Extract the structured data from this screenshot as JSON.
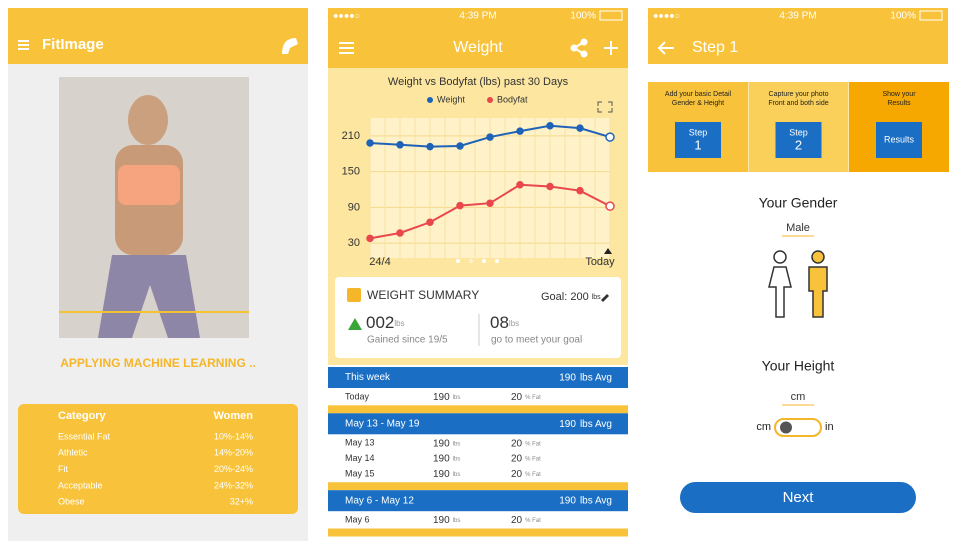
{
  "screens": [
    {
      "header": {
        "title": "FitImage"
      },
      "status": "APPLYING MACHINE LEARNING ..",
      "table": {
        "columns": [
          "Category",
          "Women"
        ],
        "rows": [
          [
            "Essential Fat",
            "10%-14%"
          ],
          [
            "Athletic",
            "14%-20%"
          ],
          [
            "Fit",
            "20%-24%"
          ],
          [
            "Acceptable",
            "24%-32%"
          ],
          [
            "Obese",
            "32+%"
          ]
        ]
      }
    },
    {
      "status_bar": {
        "time": "4:39 PM",
        "battery": "100%"
      },
      "header": {
        "title": "Weight"
      },
      "chart": {
        "type": "line",
        "title": "Weight vs Bodyfat (lbs) past 30 Days",
        "categories": [
          "24/4",
          null,
          null,
          null,
          null,
          null,
          null,
          null,
          "Today"
        ],
        "series": [
          {
            "name": "Weight",
            "color": "#1e63b8",
            "values": [
              198,
              195,
              192,
              193,
              208,
              218,
              227,
              223,
              208
            ]
          },
          {
            "name": "Bodyfat",
            "color": "#e8474c",
            "values": [
              38,
              47,
              65,
              93,
              97,
              128,
              125,
              118,
              92
            ]
          }
        ],
        "ylim": [
          5,
          240
        ],
        "yticks": [
          30,
          90,
          150,
          210
        ]
      },
      "summary": {
        "title": "WEIGHT SUMMARY",
        "goal_label": "Goal: 200",
        "goal_unit": "lbs",
        "gained": "002",
        "gained_unit": "lbs",
        "gained_caption": "Gained since 19/5",
        "remaining": "08",
        "remaining_unit": "lbs",
        "remaining_caption": "go to meet your goal"
      },
      "units": {
        "weight": "lbs",
        "fat": "% Fat",
        "avg": "lbs Avg"
      },
      "groups": [
        {
          "title": "This week",
          "avg": "190",
          "rows": [
            [
              "Today",
              "190",
              "20"
            ]
          ]
        },
        {
          "title": "May 13 - May 19",
          "avg": "190",
          "rows": [
            [
              "May 13",
              "190",
              "20"
            ],
            [
              "May 14",
              "190",
              "20"
            ],
            [
              "May 15",
              "190",
              "20"
            ]
          ]
        },
        {
          "title": "May 6 - May 12",
          "avg": "190",
          "rows": [
            [
              "May 6",
              "190",
              "20"
            ]
          ]
        }
      ]
    },
    {
      "status_bar": {
        "time": "4:39 PM",
        "battery": "100%"
      },
      "header": {
        "title": "Step 1"
      },
      "steps": [
        {
          "desc": [
            "Add your basic Detail",
            "Gender & Height"
          ],
          "button": [
            "Step",
            "1"
          ]
        },
        {
          "desc": [
            "Capture your photo",
            "Front and both side"
          ],
          "button": [
            "Step",
            "2"
          ]
        },
        {
          "desc": [
            "Show your",
            "Results"
          ],
          "button": [
            "Results"
          ]
        }
      ],
      "gender": {
        "label": "Your Gender",
        "value": "Male"
      },
      "height": {
        "label": "Your Height",
        "value": "cm",
        "left": "cm",
        "right": "in"
      },
      "next": "Next"
    }
  ]
}
